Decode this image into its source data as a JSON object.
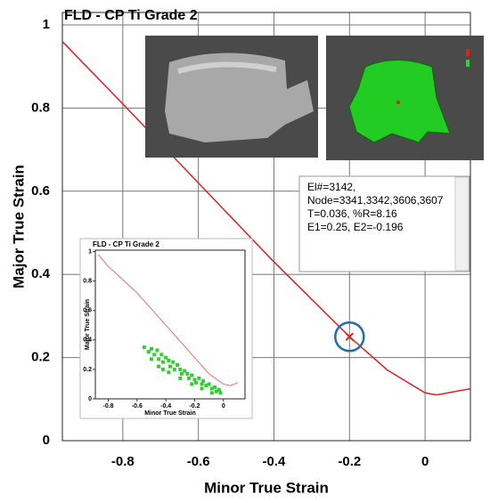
{
  "chart_data": [
    {
      "type": "line",
      "title": "FLD - CP Ti Grade 2",
      "xlabel": "Minor True Strain",
      "ylabel": "Major True Strain",
      "xlim": [
        -0.96,
        0.12
      ],
      "ylim": [
        0,
        1.03
      ],
      "xticks": [
        -0.8,
        -0.6,
        -0.4,
        -0.2,
        0
      ],
      "yticks": [
        0,
        0.2,
        0.4,
        0.6,
        0.8,
        1
      ],
      "grid": true,
      "series": [
        {
          "color": "#e02020",
          "x": [
            -0.96,
            -0.8,
            -0.6,
            -0.4,
            -0.2,
            -0.1,
            0,
            0.03,
            0.12
          ],
          "values": [
            0.96,
            0.81,
            0.62,
            0.43,
            0.25,
            0.17,
            0.115,
            0.11,
            0.125
          ]
        }
      ],
      "marker": {
        "x": -0.2,
        "y": 0.25
      },
      "annotation": [
        "El#=3142,",
        "Node=3341,3342,3606,3607",
        "T=0.036, %R=8.16",
        "E1=0.25, E2=-0.196"
      ]
    },
    {
      "type": "line",
      "title": "FLD - CP Ti Grade 2",
      "xlabel": "Minor True Strain",
      "ylabel": "Major True Strain",
      "xlim": [
        -0.89,
        0.15
      ],
      "ylim": [
        0,
        1.01
      ],
      "xticks": [
        -0.8,
        -0.6,
        -0.4,
        -0.2,
        0
      ],
      "yticks": [
        0,
        0.2,
        0.4,
        0.6,
        0.8,
        1
      ],
      "grid": false,
      "series": [
        {
          "color": "#e07070",
          "x": [
            -0.87,
            -0.8,
            -0.6,
            -0.4,
            -0.2,
            -0.1,
            0,
            0.05,
            0.1
          ],
          "values": [
            0.98,
            0.9,
            0.72,
            0.5,
            0.28,
            0.17,
            0.1,
            0.09,
            0.11
          ]
        },
        {
          "color": "#33cc33",
          "mode": "markers",
          "x": [
            -0.55,
            -0.52,
            -0.5,
            -0.48,
            -0.46,
            -0.45,
            -0.43,
            -0.42,
            -0.4,
            -0.38,
            -0.37,
            -0.35,
            -0.34,
            -0.32,
            -0.3,
            -0.29,
            -0.27,
            -0.25,
            -0.24,
            -0.22,
            -0.2,
            -0.19,
            -0.17,
            -0.15,
            -0.14,
            -0.12,
            -0.1,
            -0.08,
            -0.06,
            -0.05,
            -0.03,
            -0.02,
            -0.45,
            -0.38,
            -0.3,
            -0.22,
            -0.15,
            -0.08,
            -0.5,
            -0.42
          ],
          "values": [
            0.35,
            0.32,
            0.34,
            0.3,
            0.33,
            0.27,
            0.3,
            0.25,
            0.28,
            0.26,
            0.22,
            0.25,
            0.2,
            0.23,
            0.2,
            0.17,
            0.19,
            0.17,
            0.14,
            0.16,
            0.13,
            0.11,
            0.14,
            0.1,
            0.12,
            0.09,
            0.1,
            0.07,
            0.08,
            0.05,
            0.06,
            0.04,
            0.22,
            0.18,
            0.14,
            0.1,
            0.07,
            0.04,
            0.27,
            0.2
          ]
        }
      ]
    }
  ]
}
